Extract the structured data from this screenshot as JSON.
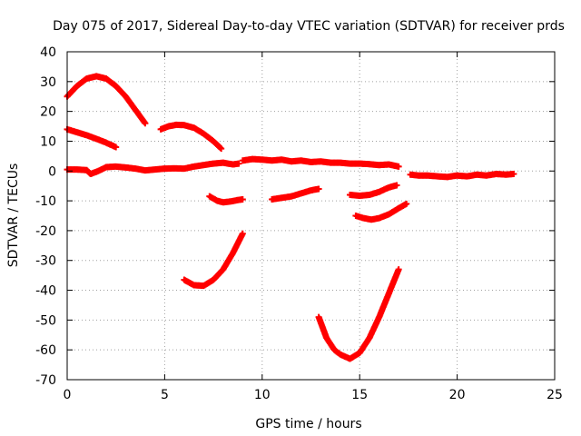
{
  "chart_data": {
    "type": "scatter",
    "title": "Day 075 of 2017, Sidereal Day-to-day VTEC variation (SDTVAR) for receiver prds",
    "xlabel": "GPS time / hours",
    "ylabel": "SDTVAR / TECUs",
    "xlim": [
      0,
      25
    ],
    "ylim": [
      -70,
      40
    ],
    "xticks": [
      "0",
      "5",
      "10",
      "15",
      "20",
      "25"
    ],
    "yticks": [
      "-70",
      "-60",
      "-50",
      "-40",
      "-30",
      "-20",
      "-10",
      "0",
      "10",
      "20",
      "30",
      "40"
    ],
    "xtick_values": [
      0,
      5,
      10,
      15,
      20,
      25
    ],
    "ytick_values": [
      -70,
      -60,
      -50,
      -40,
      -30,
      -20,
      -10,
      0,
      10,
      20,
      30,
      40
    ],
    "grid": true,
    "grid_style": "dotted",
    "marker": "cross",
    "color": "#ff0000",
    "series": [
      {
        "values": [
          [
            0.0,
            25.0
          ],
          [
            0.5,
            28.5
          ],
          [
            1.0,
            31.0
          ],
          [
            1.5,
            31.8
          ],
          [
            2.0,
            31.0
          ],
          [
            2.5,
            28.5
          ],
          [
            3.0,
            25.0
          ],
          [
            3.5,
            20.5
          ],
          [
            4.0,
            16.0
          ]
        ]
      },
      {
        "values": [
          [
            0.0,
            14.0
          ],
          [
            0.5,
            13.0
          ],
          [
            1.0,
            12.0
          ],
          [
            1.5,
            10.8
          ],
          [
            2.0,
            9.5
          ],
          [
            2.5,
            8.0
          ]
        ]
      },
      {
        "values": [
          [
            4.8,
            14.0
          ],
          [
            5.2,
            15.0
          ],
          [
            5.6,
            15.5
          ],
          [
            6.0,
            15.4
          ],
          [
            6.5,
            14.5
          ],
          [
            7.0,
            12.5
          ],
          [
            7.5,
            10.0
          ],
          [
            7.9,
            7.5
          ]
        ]
      },
      {
        "values": [
          [
            0.0,
            0.5
          ],
          [
            0.5,
            0.5
          ],
          [
            1.0,
            0.3
          ],
          [
            1.2,
            -1.0
          ],
          [
            1.6,
            0.0
          ],
          [
            2.0,
            1.3
          ],
          [
            2.5,
            1.5
          ],
          [
            3.0,
            1.2
          ],
          [
            3.5,
            0.8
          ],
          [
            4.0,
            0.2
          ],
          [
            4.5,
            0.5
          ],
          [
            5.0,
            0.8
          ],
          [
            5.5,
            0.9
          ],
          [
            6.0,
            0.8
          ],
          [
            6.5,
            1.5
          ],
          [
            7.0,
            2.0
          ],
          [
            7.5,
            2.5
          ],
          [
            8.0,
            2.8
          ],
          [
            8.5,
            2.2
          ],
          [
            8.8,
            2.5
          ]
        ]
      },
      {
        "values": [
          [
            9.0,
            3.5
          ],
          [
            9.5,
            4.0
          ],
          [
            10.0,
            3.8
          ],
          [
            10.5,
            3.5
          ],
          [
            11.0,
            3.8
          ],
          [
            11.5,
            3.2
          ],
          [
            12.0,
            3.5
          ],
          [
            12.5,
            3.0
          ],
          [
            13.0,
            3.2
          ],
          [
            13.5,
            2.8
          ],
          [
            14.0,
            2.8
          ],
          [
            14.5,
            2.5
          ],
          [
            15.0,
            2.5
          ],
          [
            15.5,
            2.3
          ],
          [
            16.0,
            2.0
          ],
          [
            16.5,
            2.2
          ],
          [
            17.0,
            1.5
          ]
        ]
      },
      {
        "values": [
          [
            17.6,
            -1.2
          ],
          [
            18.0,
            -1.5
          ],
          [
            18.5,
            -1.5
          ],
          [
            19.0,
            -1.8
          ],
          [
            19.5,
            -2.0
          ],
          [
            20.0,
            -1.5
          ],
          [
            20.5,
            -1.8
          ],
          [
            21.0,
            -1.2
          ],
          [
            21.5,
            -1.5
          ],
          [
            22.0,
            -1.0
          ],
          [
            22.5,
            -1.2
          ],
          [
            22.9,
            -1.0
          ]
        ]
      },
      {
        "values": [
          [
            7.3,
            -8.5
          ],
          [
            7.7,
            -10.0
          ],
          [
            8.0,
            -10.5
          ],
          [
            8.4,
            -10.2
          ],
          [
            8.7,
            -9.8
          ],
          [
            9.0,
            -9.5
          ]
        ]
      },
      {
        "values": [
          [
            10.5,
            -9.5
          ],
          [
            11.0,
            -9.0
          ],
          [
            11.5,
            -8.5
          ],
          [
            12.0,
            -7.5
          ],
          [
            12.5,
            -6.5
          ],
          [
            12.9,
            -6.0
          ]
        ]
      },
      {
        "values": [
          [
            14.5,
            -8.0
          ],
          [
            15.0,
            -8.3
          ],
          [
            15.5,
            -8.0
          ],
          [
            16.0,
            -7.0
          ],
          [
            16.5,
            -5.5
          ],
          [
            16.9,
            -4.8
          ]
        ]
      },
      {
        "values": [
          [
            14.8,
            -15.0
          ],
          [
            15.2,
            -15.8
          ],
          [
            15.6,
            -16.3
          ],
          [
            16.0,
            -15.8
          ],
          [
            16.5,
            -14.5
          ],
          [
            17.0,
            -12.5
          ],
          [
            17.4,
            -11.0
          ]
        ]
      },
      {
        "values": [
          [
            6.0,
            -36.5
          ],
          [
            6.5,
            -38.3
          ],
          [
            7.0,
            -38.5
          ],
          [
            7.5,
            -36.5
          ],
          [
            8.0,
            -33.0
          ],
          [
            8.5,
            -27.5
          ],
          [
            9.0,
            -21.0
          ]
        ]
      },
      {
        "values": [
          [
            12.9,
            -49.0
          ],
          [
            13.3,
            -56.0
          ],
          [
            13.7,
            -60.0
          ],
          [
            14.0,
            -61.5
          ],
          [
            14.5,
            -63.0
          ],
          [
            15.0,
            -61.0
          ],
          [
            15.5,
            -56.0
          ],
          [
            16.0,
            -49.0
          ],
          [
            16.5,
            -41.0
          ],
          [
            17.0,
            -33.0
          ]
        ]
      }
    ]
  }
}
